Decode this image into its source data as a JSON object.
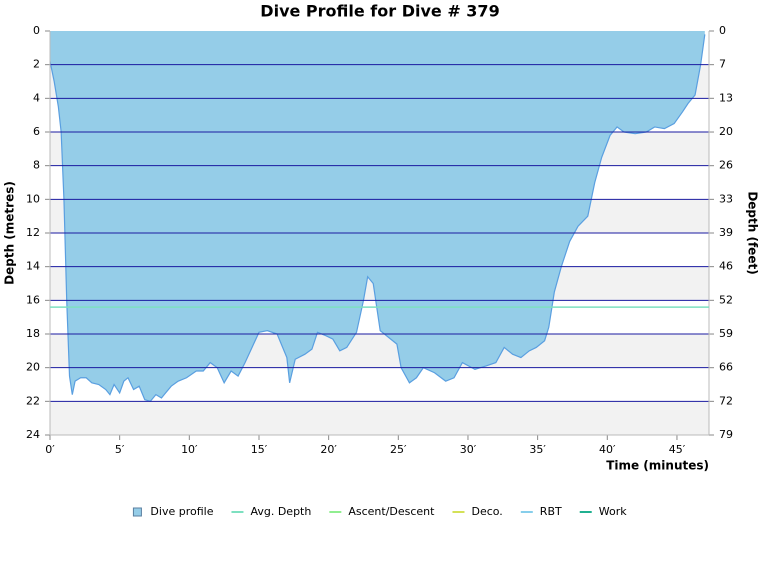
{
  "chart_data": {
    "type": "area",
    "title": "Dive Profile for Dive # 379",
    "ylabel": "Depth (metres)",
    "y2label": "Depth (feet)",
    "xlabel": "Time (minutes)",
    "x": [
      0,
      0.3,
      0.6,
      0.8,
      1.0,
      1.2,
      1.4,
      1.6,
      1.8,
      2.2,
      2.6,
      3.0,
      3.5,
      4.0,
      4.3,
      4.6,
      5.0,
      5.3,
      5.6,
      6.0,
      6.4,
      6.8,
      7.2,
      7.6,
      8.0,
      8.3,
      8.7,
      9.2,
      9.8,
      10.5,
      11.0,
      11.5,
      12.0,
      12.5,
      13.0,
      13.5,
      14.0,
      14.5,
      15.0,
      15.6,
      16.3,
      17.0,
      17.2,
      17.6,
      18.3,
      18.8,
      19.2,
      19.8,
      20.3,
      20.8,
      21.3,
      22.0,
      22.5,
      22.8,
      23.2,
      23.7,
      24.3,
      24.9,
      25.2,
      25.8,
      26.3,
      26.8,
      27.6,
      28.4,
      29.0,
      29.6,
      30.5,
      31.3,
      32.0,
      32.6,
      33.2,
      33.8,
      34.4,
      34.9,
      35.5,
      35.8,
      36.2,
      36.7,
      37.3,
      37.9,
      38.6,
      39.1,
      39.6,
      40.2,
      40.7,
      41.2,
      42.0,
      42.8,
      43.4,
      44.1,
      44.8,
      45.4,
      45.8,
      46.3,
      46.7,
      47.0
    ],
    "series": [
      {
        "name": "Dive profile",
        "color": "#95cde8",
        "values": [
          1.8,
          3.0,
          4.5,
          6,
          10,
          16,
          20.5,
          21.6,
          20.8,
          20.6,
          20.6,
          20.9,
          21.0,
          21.3,
          21.6,
          21.0,
          21.5,
          20.8,
          20.6,
          21.3,
          21.1,
          21.9,
          22.0,
          21.6,
          21.8,
          21.5,
          21.1,
          20.8,
          20.6,
          20.2,
          20.2,
          19.7,
          20.0,
          20.9,
          20.2,
          20.5,
          19.7,
          18.8,
          17.9,
          17.8,
          18.0,
          19.4,
          20.9,
          19.5,
          19.2,
          18.9,
          17.9,
          18.1,
          18.3,
          19.0,
          18.8,
          17.9,
          16.0,
          14.6,
          15.0,
          17.8,
          18.2,
          18.6,
          20.0,
          20.9,
          20.6,
          20.0,
          20.3,
          20.8,
          20.6,
          19.7,
          20.1,
          19.9,
          19.7,
          18.8,
          19.2,
          19.4,
          19.0,
          18.8,
          18.4,
          17.6,
          15.5,
          14.0,
          12.5,
          11.6,
          11.0,
          9.0,
          7.5,
          6.2,
          5.7,
          6.0,
          6.1,
          6.0,
          5.7,
          5.8,
          5.5,
          4.8,
          4.3,
          3.8,
          2.0,
          0.2
        ]
      },
      {
        "name": "Avg. Depth",
        "color": "#7de0c0",
        "value": 16.4
      },
      {
        "name": "Ascent/Descent",
        "color": "#90ee90"
      },
      {
        "name": "Deco.",
        "color": "#d4e157"
      },
      {
        "name": "RBT",
        "color": "#87ceeb"
      },
      {
        "name": "Work",
        "color": "#20b090"
      }
    ],
    "xlim": [
      0,
      47.3
    ],
    "ylim": [
      0,
      24
    ],
    "y2lim": [
      0,
      78.74
    ],
    "xticks": [
      {
        "value": 0,
        "label": "0′"
      },
      {
        "value": 5,
        "label": "5′"
      },
      {
        "value": 10,
        "label": "10′"
      },
      {
        "value": 15,
        "label": "15′"
      },
      {
        "value": 20,
        "label": "20′"
      },
      {
        "value": 25,
        "label": "25′"
      },
      {
        "value": 30,
        "label": "30′"
      },
      {
        "value": 35,
        "label": "35′"
      },
      {
        "value": 40,
        "label": "40′"
      },
      {
        "value": 45,
        "label": "45′"
      }
    ],
    "yticks": [
      0,
      2,
      4,
      6,
      8,
      10,
      12,
      14,
      16,
      18,
      20,
      22,
      24
    ],
    "y2ticks": [
      0,
      {
        "value": 6.56,
        "label": "7"
      },
      {
        "value": 13.12,
        "label": "13"
      },
      {
        "value": 19.69,
        "label": "20"
      },
      {
        "value": 26.25,
        "label": "26"
      },
      {
        "value": 32.81,
        "label": "33"
      },
      {
        "value": 39.37,
        "label": "39"
      },
      {
        "value": 45.93,
        "label": "46"
      },
      {
        "value": 52.49,
        "label": "52"
      },
      {
        "value": 59.06,
        "label": "59"
      },
      {
        "value": 65.62,
        "label": "66"
      },
      {
        "value": 72.18,
        "label": "72"
      },
      {
        "value": 78.74,
        "label": "79"
      }
    ],
    "y_inverted": true,
    "grid": true,
    "grid_color": "#1a1aa0"
  }
}
